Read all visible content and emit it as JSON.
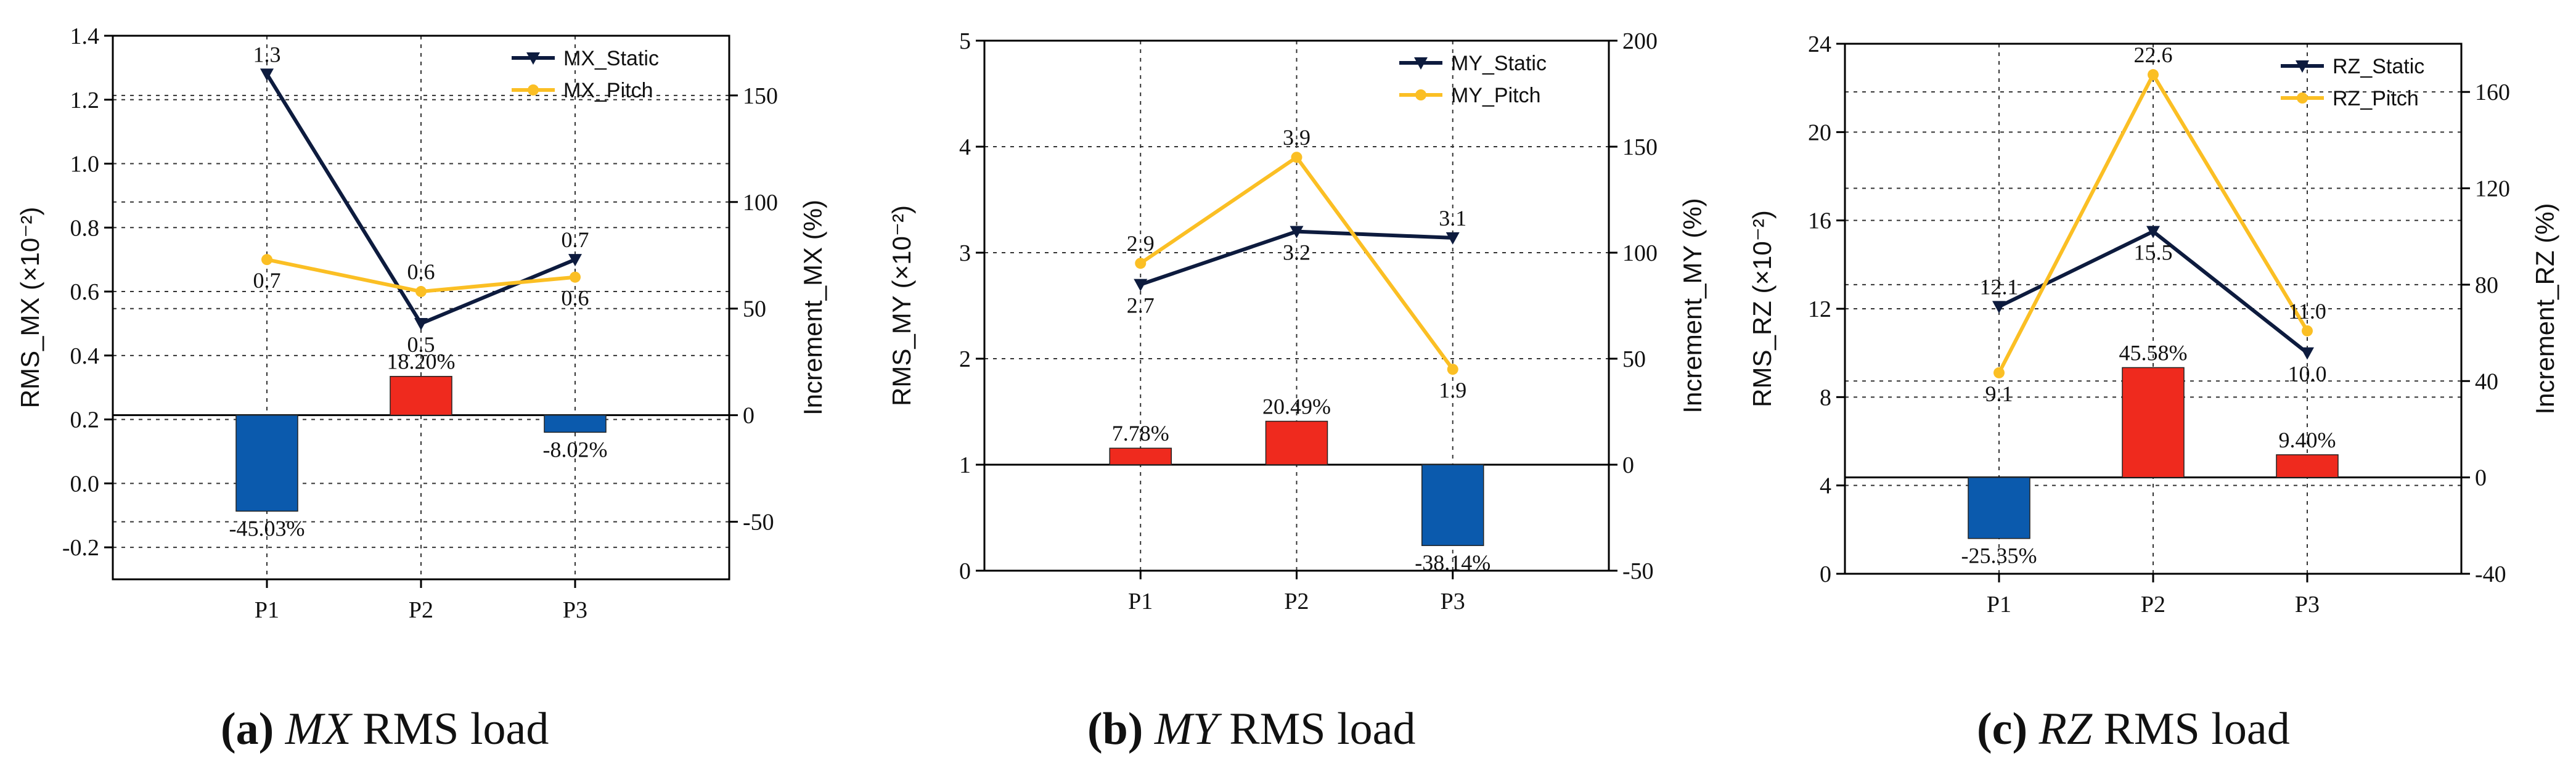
{
  "colors": {
    "static": "#0d1b3e",
    "pitch": "#fbbf24",
    "bar_positive": "#ef2a1e",
    "bar_negative": "#0b5aad"
  },
  "chart_data": [
    {
      "type": "line+bar",
      "panel": "a",
      "caption": {
        "letter": "(a)",
        "var": "MX",
        "rest": "RMS load"
      },
      "categories": [
        "P1",
        "P2",
        "P3"
      ],
      "ylabel_left": "RMS_MX (×10⁻²)",
      "ylabel_right": "Increment_MX (%)",
      "ylim_left": [
        -0.3,
        1.4
      ],
      "yticks_left": [
        -0.2,
        0.0,
        0.2,
        0.4,
        0.6,
        0.8,
        1.0,
        1.2,
        1.4
      ],
      "ytick_labels_left": [
        "-0.2",
        "0.0",
        "0.2",
        "0.4",
        "0.6",
        "0.8",
        "1.0",
        "1.2",
        "1.4"
      ],
      "ylim_right": [
        -77,
        178
      ],
      "yticks_right": [
        -50,
        0,
        50,
        100,
        150
      ],
      "ytick_labels_right": [
        "-50",
        "0",
        "50",
        "100",
        "150"
      ],
      "series": [
        {
          "name": "MX_Static",
          "values": [
            1.28,
            0.5,
            0.7
          ],
          "labels": [
            "1.3",
            "0.5",
            "0.7"
          ]
        },
        {
          "name": "MX_Pitch",
          "values": [
            0.7,
            0.6,
            0.645
          ],
          "labels": [
            "0.7",
            "0.6",
            "0.6"
          ]
        }
      ],
      "increment": {
        "values": [
          -45.03,
          18.2,
          -8.02
        ],
        "labels": [
          "-45.03%",
          "18.20%",
          "-8.02%"
        ]
      }
    },
    {
      "type": "line+bar",
      "panel": "b",
      "caption": {
        "letter": "(b)",
        "var": "MY",
        "rest": "RMS load"
      },
      "categories": [
        "P1",
        "P2",
        "P3"
      ],
      "ylabel_left": "RMS_MY (×10⁻²)",
      "ylabel_right": "Increment_MY (%)",
      "ylim_left": [
        0,
        5
      ],
      "yticks_left": [
        0,
        1,
        2,
        3,
        4,
        5
      ],
      "ytick_labels_left": [
        "0",
        "1",
        "2",
        "3",
        "4",
        "5"
      ],
      "ylim_right": [
        -50,
        200
      ],
      "yticks_right": [
        -50,
        0,
        50,
        100,
        150,
        200
      ],
      "ytick_labels_right": [
        "-50",
        "0",
        "50",
        "100",
        "150",
        "200"
      ],
      "series": [
        {
          "name": "MY_Static",
          "values": [
            2.7,
            3.2,
            3.14
          ],
          "labels": [
            "2.7",
            "3.2",
            "3.1"
          ]
        },
        {
          "name": "MY_Pitch",
          "values": [
            2.9,
            3.9,
            1.9
          ],
          "labels": [
            "2.9",
            "3.9",
            "1.9"
          ]
        }
      ],
      "increment": {
        "values": [
          7.78,
          20.49,
          -38.14
        ],
        "labels": [
          "7.78%",
          "20.49%",
          "-38.14%"
        ]
      }
    },
    {
      "type": "line+bar",
      "panel": "c",
      "caption": {
        "letter": "(c)",
        "var": "RZ",
        "rest": "RMS load"
      },
      "categories": [
        "P1",
        "P2",
        "P3"
      ],
      "ylabel_left": "RMS_RZ (×10⁻²)",
      "ylabel_right": "Increment_RZ (%)",
      "ylim_left": [
        0,
        24
      ],
      "yticks_left": [
        0,
        4,
        8,
        12,
        16,
        20,
        24
      ],
      "ytick_labels_left": [
        "0",
        "4",
        "8",
        "12",
        "16",
        "20",
        "24"
      ],
      "ylim_right": [
        -40,
        180
      ],
      "yticks_right": [
        -40,
        0,
        40,
        80,
        120,
        160
      ],
      "ytick_labels_right": [
        "-40",
        "0",
        "40",
        "80",
        "120",
        "160"
      ],
      "series": [
        {
          "name": "RZ_Static",
          "values": [
            12.1,
            15.5,
            10.0
          ],
          "labels": [
            "12.1",
            "15.5",
            "10.0"
          ]
        },
        {
          "name": "RZ_Pitch",
          "values": [
            9.1,
            22.6,
            11.0
          ],
          "labels": [
            "9.1",
            "22.6",
            "11.0"
          ]
        }
      ],
      "increment": {
        "values": [
          -25.35,
          45.58,
          9.4
        ],
        "labels": [
          "-25.35%",
          "45.58%",
          "9.40%"
        ]
      }
    }
  ]
}
